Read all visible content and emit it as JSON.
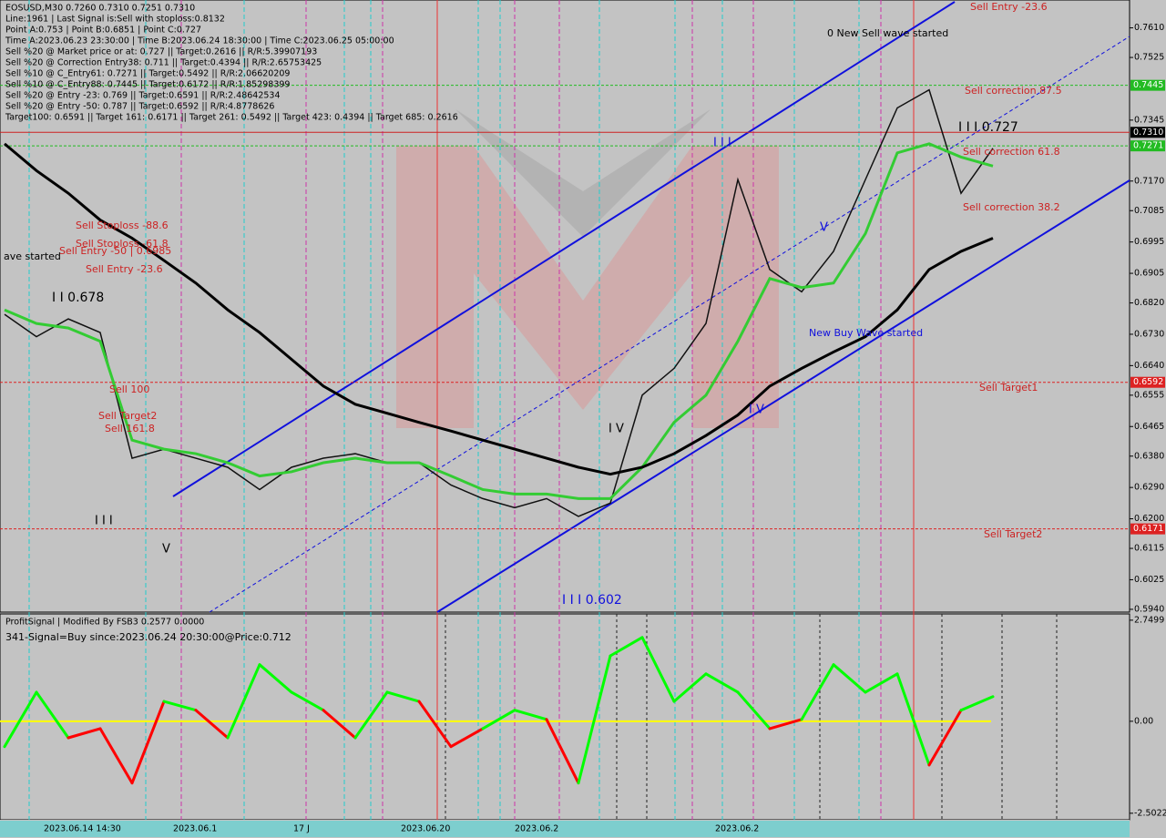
{
  "chart_data": [
    {
      "type": "line",
      "info_lines": [
        "EOSUSD,M30  0.7260 0.7310 0.7251 0.7310",
        "Line:1961 | Last Signal is:Sell with stoploss:0.8132",
        "Point A:0.753 | Point B:0.6851 | Point C:0.727",
        "Time A:2023.06.23 23:30:00 | Time B:2023.06.24 18:30:00 | Time C:2023.06.25 05:00:00",
        "Sell %20 @ Market price or at: 0.727 || Target:0.2616 || R/R:5.39907193",
        "Sell %20 @ Correction Entry38: 0.711 || Target:0.4394 || R/R:2.65753425",
        "Sell %10 @ C_Entry61: 0.7271 || Target:0.5492 || R/R:2.06620209",
        "Sell %10 @ C_Entry88: 0.7445 || Target:0.6172 || R/R:1.85298399",
        "Sell %20 @ Entry -23: 0.769 || Target:0.6591 || R/R:2.48642534",
        "Sell %20 @ Entry -50: 0.787 || Target:0.6592 || R/R:4.8778626",
        "Target100: 0.6591 || Target 161: 0.6171 || Target 261: 0.5492 || Target 423: 0.4394 || Target 685: 0.2616"
      ],
      "annotations": [
        "Sell Entry -23.6",
        "0 New Sell wave started",
        "Sell correction 87.5",
        "I I I 0.727",
        "Sell correction 61.8",
        "Sell correction 38.2",
        "Sell Stoploss -88.6",
        "Sell Stoploss -61.8",
        "Sell Entry -50 | 0.6985",
        "Sell Entry -23.6",
        "ave started",
        "I I 0.678",
        "Sell 100",
        "Sell Target2",
        "Sell 161.8",
        "I I I",
        "V",
        "I I I 0.602",
        "New Buy Wave started",
        "Sell Target1",
        "Sell Target2",
        "I V",
        "I V",
        "V",
        "I I I"
      ],
      "ylim": [
        0.5932,
        0.769
      ],
      "yticks": [
        {
          "value": 0.761,
          "label": "0.7610"
        },
        {
          "value": 0.7525,
          "label": "0.7525"
        },
        {
          "value": 0.7345,
          "label": "0.7345"
        },
        {
          "value": 0.717,
          "label": "0.7170"
        },
        {
          "value": 0.7085,
          "label": "0.7085"
        },
        {
          "value": 0.6995,
          "label": "0.6995"
        },
        {
          "value": 0.6905,
          "label": "0.6905"
        },
        {
          "value": 0.682,
          "label": "0.6820"
        },
        {
          "value": 0.673,
          "label": "0.6730"
        },
        {
          "value": 0.664,
          "label": "0.6640"
        },
        {
          "value": 0.6555,
          "label": "0.6555"
        },
        {
          "value": 0.6465,
          "label": "0.6465"
        },
        {
          "value": 0.638,
          "label": "0.6380"
        },
        {
          "value": 0.629,
          "label": "0.6290"
        },
        {
          "value": 0.62,
          "label": "0.6200"
        },
        {
          "value": 0.6115,
          "label": "0.6115"
        },
        {
          "value": 0.6025,
          "label": "0.6025"
        },
        {
          "value": 0.594,
          "label": "0.5940"
        }
      ],
      "price_tags": [
        {
          "value": 0.7445,
          "label": "0.7445",
          "color": "#22bb22"
        },
        {
          "value": 0.731,
          "label": "0.7310",
          "color": "#000000"
        },
        {
          "value": 0.7271,
          "label": "0.7271",
          "color": "#22bb22"
        },
        {
          "value": 0.6592,
          "label": "0.6592",
          "color": "#dd2222"
        },
        {
          "value": 0.6171,
          "label": "0.6171",
          "color": "#dd2222"
        }
      ],
      "series": [
        {
          "color": "#111111",
          "values": [
            0.6787,
            0.6723,
            0.6774,
            0.6735,
            0.6374,
            0.64,
            0.6374,
            0.6348,
            0.6284,
            0.6348,
            0.6374,
            0.6387,
            0.6361,
            0.6361,
            0.6297,
            0.6258,
            0.6232,
            0.6258,
            0.6207,
            0.6245,
            0.6555,
            0.6632,
            0.6761,
            0.7174,
            0.6916,
            0.6852,
            0.6968,
            0.7174,
            0.738,
            0.7432,
            0.7135,
            0.7264
          ]
        },
        {
          "color": "#33cc33",
          "values": [
            0.68,
            0.6761,
            0.6748,
            0.671,
            0.6426,
            0.64,
            0.6387,
            0.6361,
            0.6323,
            0.6335,
            0.6361,
            0.6374,
            0.6361,
            0.6361,
            0.6323,
            0.6284,
            0.6271,
            0.6271,
            0.6258,
            0.6258,
            0.6348,
            0.6477,
            0.6555,
            0.671,
            0.689,
            0.6864,
            0.6877,
            0.7019,
            0.7251,
            0.7277,
            0.7239,
            0.7213
          ]
        },
        {
          "color": "#000000",
          "values": [
            0.7277,
            0.72,
            0.7135,
            0.7058,
            0.7006,
            0.6942,
            0.6877,
            0.68,
            0.6735,
            0.6658,
            0.6581,
            0.6529,
            0.6503,
            0.6477,
            0.6452,
            0.6426,
            0.64,
            0.6374,
            0.6348,
            0.6328,
            0.6348,
            0.6387,
            0.6439,
            0.6498,
            0.6581,
            0.6632,
            0.6679,
            0.6723,
            0.68,
            0.6916,
            0.6968,
            0.7006
          ]
        }
      ],
      "x_labels": [
        "2023.06.14 14:30",
        "2023.06.1",
        "17 J",
        "2023.06.20",
        "2023.06.2",
        "2023.06.2"
      ]
    },
    {
      "type": "line",
      "title": "ProfitSignal | Modified By FSB3 0.2577 0.0000",
      "subtitle": "341-Signal=Buy since:2023.06.24 20:30:00@Price:0.712",
      "ylim": [
        -2.68,
        2.92
      ],
      "yticks": [
        2.7499,
        {
          "value": 0,
          "label": "0.00"
        },
        -2.5022
      ],
      "zero_color": "#ffff00",
      "series": [
        {
          "color": "#00ff00",
          "negative_color": "#ff0000",
          "values": [
            -0.69,
            0.79,
            -0.45,
            -0.2,
            -1.68,
            0.54,
            0.3,
            -0.45,
            1.54,
            0.79,
            0.3,
            -0.45,
            0.79,
            0.54,
            -0.69,
            -0.2,
            0.3,
            0.05,
            -1.68,
            1.78,
            2.28,
            0.54,
            1.29,
            0.79,
            -0.2,
            0.05,
            1.54,
            0.79,
            1.29,
            -1.19,
            0.3,
            0.67
          ]
        }
      ]
    }
  ]
}
